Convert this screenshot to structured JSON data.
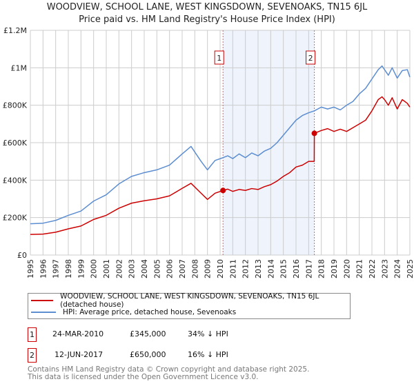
{
  "chart_data": {
    "type": "line",
    "title": "WOODVIEW, SCHOOL LANE, WEST KINGSDOWN, SEVENOAKS, TN15 6JL",
    "subtitle": "Price paid vs. HM Land Registry's House Price Index (HPI)",
    "xlim": [
      1995,
      2025
    ],
    "ylim": [
      0,
      1200000
    ],
    "x_ticks": [
      "1995",
      "1996",
      "1997",
      "1998",
      "1999",
      "2000",
      "2001",
      "2002",
      "2003",
      "2004",
      "2005",
      "2006",
      "2007",
      "2008",
      "2009",
      "2010",
      "2011",
      "2012",
      "2013",
      "2014",
      "2015",
      "2016",
      "2017",
      "2018",
      "2019",
      "2020",
      "2021",
      "2022",
      "2023",
      "2024",
      "2025"
    ],
    "y_ticks": [
      {
        "v": 0,
        "l": "£0"
      },
      {
        "v": 200000,
        "l": "£200K"
      },
      {
        "v": 400000,
        "l": "£400K"
      },
      {
        "v": 600000,
        "l": "£600K"
      },
      {
        "v": 800000,
        "l": "£800K"
      },
      {
        "v": 1000000,
        "l": "£1M"
      },
      {
        "v": 1200000,
        "l": "£1.2M"
      }
    ],
    "grid": true,
    "series": [
      {
        "name": "WOODVIEW, SCHOOL LANE, WEST KINGSDOWN, SEVENOAKS, TN15 6JL (detached house)",
        "color": "#cc0000",
        "x": [
          1995,
          1996,
          1997,
          1998,
          1999,
          2000,
          2001,
          2002,
          2003,
          2004,
          2005,
          2006,
          2007,
          2007.7,
          2008.5,
          2009,
          2009.6,
          2010.23,
          2010.6,
          2011,
          2011.5,
          2012,
          2012.5,
          2013,
          2013.5,
          2014,
          2014.5,
          2015,
          2015.5,
          2016,
          2016.5,
          2017,
          2017.44,
          2017.45,
          2018,
          2018.5,
          2019,
          2019.5,
          2020,
          2020.5,
          2021,
          2021.5,
          2022,
          2022.5,
          2022.8,
          2023,
          2023.3,
          2023.6,
          2024,
          2024.4,
          2024.8,
          2025
        ],
        "y": [
          110000,
          112000,
          122000,
          140000,
          155000,
          190000,
          212000,
          250000,
          277000,
          290000,
          300000,
          316000,
          356000,
          383000,
          330000,
          297000,
          330000,
          345000,
          352000,
          340000,
          350000,
          345000,
          355000,
          350000,
          365000,
          376000,
          395000,
          420000,
          440000,
          470000,
          480000,
          500000,
          500000,
          650000,
          665000,
          675000,
          660000,
          672000,
          660000,
          680000,
          700000,
          720000,
          770000,
          830000,
          845000,
          830000,
          800000,
          840000,
          780000,
          830000,
          810000,
          790000
        ]
      },
      {
        "name": "HPI: Average price, detached house, Sevenoaks",
        "color": "#5b8dd0",
        "x": [
          1995,
          1996,
          1997,
          1998,
          1999,
          2000,
          2001,
          2002,
          2003,
          2004,
          2005,
          2006,
          2007,
          2007.7,
          2008.5,
          2009,
          2009.6,
          2010.23,
          2010.6,
          2011,
          2011.5,
          2012,
          2012.5,
          2013,
          2013.5,
          2014,
          2014.5,
          2015,
          2015.5,
          2016,
          2016.5,
          2017,
          2017.45,
          2018,
          2018.5,
          2019,
          2019.5,
          2020,
          2020.5,
          2021,
          2021.5,
          2022,
          2022.5,
          2022.8,
          2023,
          2023.3,
          2023.6,
          2024,
          2024.4,
          2024.8,
          2025
        ],
        "y": [
          167000,
          170000,
          185000,
          212000,
          235000,
          288000,
          322000,
          380000,
          420000,
          440000,
          455000,
          480000,
          540000,
          580000,
          500000,
          455000,
          505000,
          520000,
          530000,
          515000,
          540000,
          520000,
          545000,
          530000,
          555000,
          570000,
          600000,
          640000,
          680000,
          720000,
          745000,
          760000,
          770000,
          790000,
          780000,
          790000,
          775000,
          800000,
          820000,
          860000,
          890000,
          940000,
          990000,
          1010000,
          990000,
          960000,
          1000000,
          945000,
          985000,
          990000,
          950000
        ]
      }
    ],
    "annotations": [
      {
        "label": "1",
        "x": 2010.23,
        "y": 345000
      },
      {
        "label": "2",
        "x": 2017.45,
        "y": 650000
      }
    ],
    "shade": [
      2010.23,
      2017.45
    ],
    "legend_placement": "below"
  },
  "legend": {
    "red": "WOODVIEW, SCHOOL LANE, WEST KINGSDOWN, SEVENOAKS, TN15 6JL (detached house)",
    "blue": "HPI: Average price, detached house, Sevenoaks"
  },
  "transactions": [
    {
      "num": "1",
      "date": "24-MAR-2010",
      "price": "£345,000",
      "hpi": "34% ↓ HPI"
    },
    {
      "num": "2",
      "date": "12-JUN-2017",
      "price": "£650,000",
      "hpi": "16% ↓ HPI"
    }
  ],
  "footer": {
    "line1": "Contains HM Land Registry data © Crown copyright and database right 2025.",
    "line2": "This data is licensed under the Open Government Licence v3.0."
  }
}
